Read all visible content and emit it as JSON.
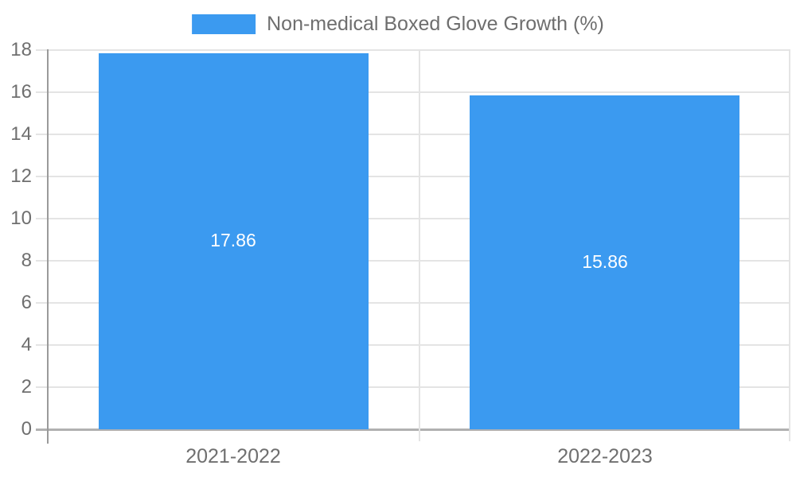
{
  "chart_data": {
    "type": "bar",
    "title": "",
    "legend": {
      "position": "top",
      "label": "Non-medical Boxed Glove Growth (%)"
    },
    "categories": [
      "2021-2022",
      "2022-2023"
    ],
    "series": [
      {
        "name": "Non-medical Boxed Glove Growth (%)",
        "values": [
          17.86,
          15.86
        ]
      }
    ],
    "value_labels": [
      "17.86",
      "15.86"
    ],
    "ylim": [
      0,
      18
    ],
    "yticks": [
      0,
      2,
      4,
      6,
      8,
      10,
      12,
      14,
      16,
      18
    ],
    "grid": true
  },
  "colors": {
    "bar": "#3b9af0",
    "value_label": "#ffffff",
    "axis_text": "#6f6f6f",
    "legend_text": "#6e6e6e",
    "gridline": "#e4e4e4",
    "baseline": "#b1b1b1",
    "axis_line": "#9a9a9a",
    "background": "#ffffff"
  }
}
